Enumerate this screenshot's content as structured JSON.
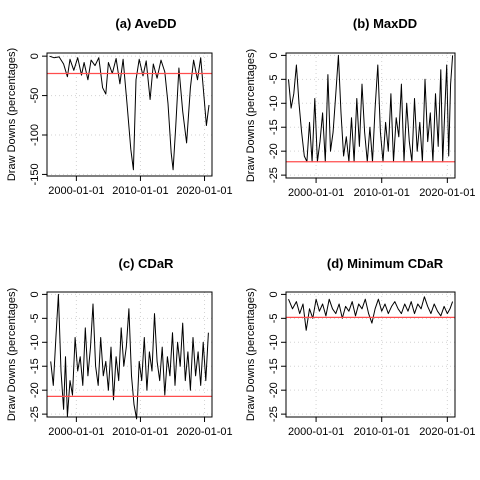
{
  "chart_data": [
    {
      "type": "line",
      "title": "(a) AveDD",
      "ylabel": "Draw Downs (percentages)",
      "xlabel": "",
      "x_ticks": [
        "2000-01-01",
        "2010-01-01",
        "2020-01-01"
      ],
      "y_ticks": [
        "0",
        "-50",
        "-100",
        "-150"
      ],
      "xlim": [
        "1995-06-01",
        "2021-03-01"
      ],
      "ylim": [
        -152,
        4
      ],
      "grid": true,
      "series": [
        {
          "values": [
            [
              1995.8,
              0
            ],
            [
              1996.5,
              -2
            ],
            [
              1997.3,
              -1
            ],
            [
              1998.0,
              -10
            ],
            [
              1998.6,
              -26
            ],
            [
              1999.0,
              -4
            ],
            [
              1999.6,
              -18
            ],
            [
              2000.2,
              -2
            ],
            [
              2000.8,
              -24
            ],
            [
              2001.2,
              -8
            ],
            [
              2001.8,
              -30
            ],
            [
              2002.3,
              -5
            ],
            [
              2002.9,
              -12
            ],
            [
              2003.5,
              -2
            ],
            [
              2004.1,
              -40
            ],
            [
              2004.6,
              -48
            ],
            [
              2005.0,
              -8
            ],
            [
              2005.6,
              -22
            ],
            [
              2006.2,
              -3
            ],
            [
              2006.8,
              -35
            ],
            [
              2007.3,
              -4
            ],
            [
              2007.9,
              -60
            ],
            [
              2008.5,
              -118
            ],
            [
              2008.9,
              -144
            ],
            [
              2009.3,
              -30
            ],
            [
              2009.8,
              -4
            ],
            [
              2010.4,
              -25
            ],
            [
              2010.9,
              -6
            ],
            [
              2011.5,
              -55
            ],
            [
              2012.0,
              -10
            ],
            [
              2012.6,
              -28
            ],
            [
              2013.2,
              -5
            ],
            [
              2013.8,
              -20
            ],
            [
              2014.3,
              -60
            ],
            [
              2014.8,
              -123
            ],
            [
              2015.1,
              -144
            ],
            [
              2015.5,
              -90
            ],
            [
              2016.0,
              -15
            ],
            [
              2016.6,
              -70
            ],
            [
              2017.2,
              -110
            ],
            [
              2017.8,
              -40
            ],
            [
              2018.3,
              -5
            ],
            [
              2018.9,
              -30
            ],
            [
              2019.4,
              -2
            ],
            [
              2019.9,
              -50
            ],
            [
              2020.3,
              -88
            ],
            [
              2020.7,
              -62
            ]
          ]
        }
      ],
      "reference_line": {
        "value": -22,
        "color": "#ff4d4d"
      }
    },
    {
      "type": "line",
      "title": "(b) MaxDD",
      "ylabel": "Draw Downs (percentages)",
      "xlabel": "",
      "x_ticks": [
        "2000-01-01",
        "2010-01-01",
        "2020-01-01"
      ],
      "y_ticks": [
        "0",
        "-5",
        "-10",
        "-15",
        "-20",
        "-25"
      ],
      "xlim": [
        "1995-06-01",
        "2021-03-01"
      ],
      "ylim": [
        -25.6,
        0.5
      ],
      "grid": true,
      "series": [
        {
          "values": [
            [
              1995.8,
              -5
            ],
            [
              1996.2,
              -11
            ],
            [
              1996.6,
              -8
            ],
            [
              1997.0,
              -2
            ],
            [
              1997.4,
              -10
            ],
            [
              1997.8,
              -16
            ],
            [
              1998.2,
              -21
            ],
            [
              1998.6,
              -22.2
            ],
            [
              1999.0,
              -14
            ],
            [
              1999.4,
              -22.2
            ],
            [
              1999.8,
              -9
            ],
            [
              2000.2,
              -22.2
            ],
            [
              2000.6,
              -18
            ],
            [
              2001.0,
              -12
            ],
            [
              2001.4,
              -22.2
            ],
            [
              2001.8,
              -4
            ],
            [
              2002.2,
              -20
            ],
            [
              2002.6,
              -16
            ],
            [
              2003.0,
              -8
            ],
            [
              2003.4,
              0
            ],
            [
              2003.8,
              -12
            ],
            [
              2004.2,
              -21
            ],
            [
              2004.6,
              -17
            ],
            [
              2005.0,
              -22.2
            ],
            [
              2005.4,
              -13
            ],
            [
              2005.8,
              -22.2
            ],
            [
              2006.2,
              -9
            ],
            [
              2006.6,
              -19
            ],
            [
              2007.0,
              -6
            ],
            [
              2007.4,
              -16
            ],
            [
              2007.8,
              -22.2
            ],
            [
              2008.2,
              -15
            ],
            [
              2008.6,
              -22.2
            ],
            [
              2009.0,
              -11
            ],
            [
              2009.4,
              -2
            ],
            [
              2009.8,
              -16
            ],
            [
              2010.2,
              -22.2
            ],
            [
              2010.6,
              -14
            ],
            [
              2011.0,
              -20
            ],
            [
              2011.4,
              -8
            ],
            [
              2011.8,
              -22.2
            ],
            [
              2012.2,
              -13
            ],
            [
              2012.6,
              -17
            ],
            [
              2013.0,
              -6
            ],
            [
              2013.4,
              -22.2
            ],
            [
              2013.8,
              -10
            ],
            [
              2014.2,
              -18
            ],
            [
              2014.6,
              -22.2
            ],
            [
              2015.0,
              -9
            ],
            [
              2015.4,
              -20
            ],
            [
              2015.8,
              -14
            ],
            [
              2016.2,
              -22.2
            ],
            [
              2016.6,
              -5
            ],
            [
              2017.0,
              -18
            ],
            [
              2017.4,
              -12
            ],
            [
              2017.8,
              -22.2
            ],
            [
              2018.2,
              -8
            ],
            [
              2018.6,
              -19
            ],
            [
              2019.0,
              -3
            ],
            [
              2019.3,
              -22.2
            ],
            [
              2019.6,
              -12
            ],
            [
              2019.9,
              -2
            ],
            [
              2020.2,
              -21
            ],
            [
              2020.5,
              -6
            ],
            [
              2020.8,
              0
            ]
          ]
        }
      ],
      "reference_line": {
        "value": -22.2,
        "color": "#ff4d4d"
      }
    },
    {
      "type": "line",
      "title": "(c) CDaR",
      "ylabel": "Draw Downs (percentages)",
      "xlabel": "",
      "x_ticks": [
        "2000-01-01",
        "2010-01-01",
        "2020-01-01"
      ],
      "y_ticks": [
        "0",
        "-5",
        "-10",
        "-15",
        "-20",
        "-25"
      ],
      "xlim": [
        "1995-06-01",
        "2021-03-01"
      ],
      "ylim": [
        -25.6,
        0.5
      ],
      "grid": true,
      "series": [
        {
          "values": [
            [
              1996.0,
              -14
            ],
            [
              1996.4,
              -19
            ],
            [
              1996.8,
              -9
            ],
            [
              1997.2,
              0
            ],
            [
              1997.6,
              -16
            ],
            [
              1998.0,
              -24
            ],
            [
              1998.3,
              -13
            ],
            [
              1998.6,
              -25.5
            ],
            [
              1999.0,
              -18
            ],
            [
              1999.4,
              -21
            ],
            [
              1999.8,
              -9
            ],
            [
              2000.2,
              -16
            ],
            [
              2000.6,
              -13
            ],
            [
              2001.0,
              -19
            ],
            [
              2001.4,
              -7
            ],
            [
              2001.8,
              -17
            ],
            [
              2002.2,
              -11
            ],
            [
              2002.6,
              -2
            ],
            [
              2003.0,
              -15
            ],
            [
              2003.4,
              -19
            ],
            [
              2003.8,
              -9
            ],
            [
              2004.2,
              -17
            ],
            [
              2004.6,
              -14
            ],
            [
              2005.0,
              -20
            ],
            [
              2005.4,
              -11
            ],
            [
              2005.8,
              -22
            ],
            [
              2006.2,
              -13
            ],
            [
              2006.6,
              -18
            ],
            [
              2007.0,
              -7
            ],
            [
              2007.4,
              -15
            ],
            [
              2007.8,
              -11
            ],
            [
              2008.2,
              -3
            ],
            [
              2008.6,
              -17
            ],
            [
              2009.0,
              -23
            ],
            [
              2009.4,
              -26
            ],
            [
              2009.8,
              -14
            ],
            [
              2010.2,
              -18
            ],
            [
              2010.6,
              -9
            ],
            [
              2011.0,
              -20
            ],
            [
              2011.4,
              -12
            ],
            [
              2011.8,
              -16
            ],
            [
              2012.2,
              -4
            ],
            [
              2012.6,
              -14
            ],
            [
              2013.0,
              -18
            ],
            [
              2013.4,
              -11
            ],
            [
              2013.8,
              -21
            ],
            [
              2014.2,
              -13
            ],
            [
              2014.6,
              -17
            ],
            [
              2015.0,
              -8
            ],
            [
              2015.4,
              -19
            ],
            [
              2015.8,
              -10
            ],
            [
              2016.2,
              -15
            ],
            [
              2016.6,
              -6
            ],
            [
              2017.0,
              -18
            ],
            [
              2017.4,
              -12
            ],
            [
              2017.8,
              -20
            ],
            [
              2018.2,
              -9
            ],
            [
              2018.6,
              -17
            ],
            [
              2019.0,
              -12
            ],
            [
              2019.4,
              -19
            ],
            [
              2019.8,
              -10
            ],
            [
              2020.2,
              -18
            ],
            [
              2020.6,
              -8
            ]
          ]
        }
      ],
      "reference_line": {
        "value": -21.3,
        "color": "#ff4d4d"
      }
    },
    {
      "type": "line",
      "title": "(d) Minimum CDaR",
      "ylabel": "Draw Downs (percentages)",
      "xlabel": "",
      "x_ticks": [
        "2000-01-01",
        "2010-01-01",
        "2020-01-01"
      ],
      "y_ticks": [
        "0",
        "-5",
        "-10",
        "-15",
        "-20",
        "-25"
      ],
      "xlim": [
        "1995-06-01",
        "2021-03-01"
      ],
      "ylim": [
        -25.6,
        0.5
      ],
      "grid": true,
      "series": [
        {
          "values": [
            [
              1995.8,
              -1
            ],
            [
              1996.4,
              -3
            ],
            [
              1997.0,
              -1.5
            ],
            [
              1997.5,
              -4
            ],
            [
              1998.0,
              -2
            ],
            [
              1998.5,
              -7.5
            ],
            [
              1999.0,
              -3
            ],
            [
              1999.5,
              -5
            ],
            [
              2000.0,
              -1
            ],
            [
              2000.5,
              -3.5
            ],
            [
              2001.0,
              -2
            ],
            [
              2001.5,
              -4.5
            ],
            [
              2002.0,
              -1
            ],
            [
              2002.5,
              -3
            ],
            [
              2003.0,
              -4
            ],
            [
              2003.5,
              -2
            ],
            [
              2004.0,
              -5
            ],
            [
              2004.5,
              -2.5
            ],
            [
              2005.0,
              -3.5
            ],
            [
              2005.5,
              -1.5
            ],
            [
              2006.0,
              -4.5
            ],
            [
              2006.5,
              -2
            ],
            [
              2007.0,
              -3
            ],
            [
              2007.5,
              -1
            ],
            [
              2008.0,
              -4
            ],
            [
              2008.5,
              -6
            ],
            [
              2009.0,
              -3
            ],
            [
              2009.5,
              -1
            ],
            [
              2010.0,
              -3.5
            ],
            [
              2010.5,
              -2
            ],
            [
              2011.0,
              -4
            ],
            [
              2011.5,
              -2.5
            ],
            [
              2012.0,
              -1.5
            ],
            [
              2012.5,
              -3
            ],
            [
              2013.0,
              -4
            ],
            [
              2013.5,
              -2
            ],
            [
              2014.0,
              -3.5
            ],
            [
              2014.5,
              -1.5
            ],
            [
              2015.0,
              -4
            ],
            [
              2015.5,
              -2
            ],
            [
              2016.0,
              -3
            ],
            [
              2016.5,
              -0.5
            ],
            [
              2017.0,
              -2.5
            ],
            [
              2017.5,
              -4
            ],
            [
              2018.0,
              -2
            ],
            [
              2018.5,
              -3.5
            ],
            [
              2019.0,
              -4.5
            ],
            [
              2019.5,
              -2.5
            ],
            [
              2020.0,
              -4
            ],
            [
              2020.4,
              -3
            ],
            [
              2020.8,
              -1.5
            ]
          ]
        }
      ],
      "reference_line": {
        "value": -4.8,
        "color": "#ff4d4d"
      }
    }
  ]
}
